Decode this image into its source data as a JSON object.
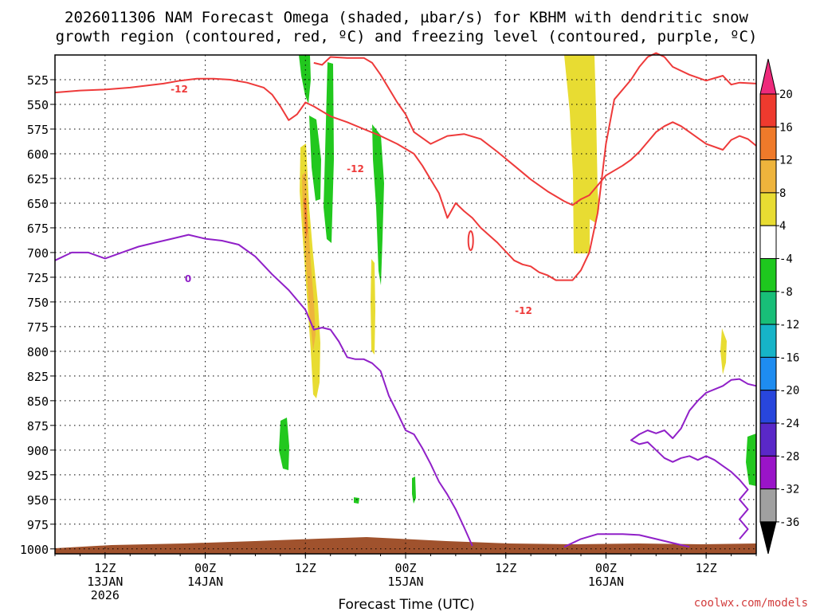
{
  "chart_data": {
    "type": "heatmap",
    "title_line1": "2026011306 NAM Forecast Omega (shaded, µbar/s) for KBHM with dendritic snow",
    "title_line2": "growth region (contoured, red, ºC) and freezing level (contoured, purple, ºC)",
    "xlabel": "Forecast Time (UTC)",
    "credit": "coolwx.com/models",
    "x_range_hours": [
      0,
      84
    ],
    "y_range_hPa": [
      1005,
      500
    ],
    "y_ticks": [
      525,
      550,
      575,
      600,
      625,
      650,
      675,
      700,
      725,
      750,
      775,
      800,
      825,
      850,
      875,
      900,
      925,
      950,
      975,
      1000
    ],
    "x_ticks": [
      {
        "hour": 6,
        "lines": [
          "12Z",
          "13JAN",
          "2026"
        ]
      },
      {
        "hour": 18,
        "lines": [
          "00Z",
          "14JAN"
        ]
      },
      {
        "hour": 30,
        "lines": [
          "12Z"
        ]
      },
      {
        "hour": 42,
        "lines": [
          "00Z",
          "15JAN"
        ]
      },
      {
        "hour": 54,
        "lines": [
          "12Z"
        ]
      },
      {
        "hour": 66,
        "lines": [
          "00Z",
          "16JAN"
        ]
      },
      {
        "hour": 78,
        "lines": [
          "12Z"
        ]
      }
    ],
    "colorbar": {
      "labels": [
        "20",
        "16",
        "12",
        "8",
        "4",
        "-4",
        "-8",
        "-12",
        "-16",
        "-20",
        "-24",
        "-28",
        "-32",
        "-36"
      ],
      "colors": [
        "#ee2a7b",
        "#ee3a2e",
        "#ef7a2a",
        "#eeb43c",
        "#e8dc32",
        "#ffffff",
        "#1ec81e",
        "#18be78",
        "#16b4c8",
        "#1e8cf0",
        "#2846dc",
        "#5a28c8",
        "#9a14c8",
        "#a0a0a0",
        "#000000"
      ]
    },
    "contour_labels": {
      "dgz": "-12",
      "freezing": "0"
    },
    "series": [
      {
        "name": "dgz_upper_-12C",
        "color": "#ee3a3a",
        "points": [
          [
            0,
            538
          ],
          [
            3,
            536
          ],
          [
            6,
            535
          ],
          [
            9,
            533
          ],
          [
            11,
            531
          ],
          [
            13,
            529
          ],
          [
            15,
            526
          ],
          [
            17,
            524
          ],
          [
            19,
            524
          ],
          [
            21,
            525
          ],
          [
            23,
            528
          ],
          [
            25,
            533
          ],
          [
            26,
            540
          ],
          [
            27,
            552
          ],
          [
            28,
            566
          ],
          [
            29,
            560
          ],
          [
            30,
            548
          ],
          [
            31,
            552
          ],
          [
            33,
            562
          ],
          [
            35,
            568
          ],
          [
            37,
            575
          ],
          [
            39,
            582
          ],
          [
            41,
            590
          ],
          [
            43,
            600
          ],
          [
            44,
            612
          ],
          [
            45,
            626
          ],
          [
            46,
            640
          ],
          [
            47,
            665
          ],
          [
            48,
            650
          ],
          [
            49,
            658
          ],
          [
            50,
            665
          ],
          [
            51,
            675
          ],
          [
            53,
            690
          ],
          [
            55,
            708
          ],
          [
            56,
            712
          ],
          [
            57,
            714
          ],
          [
            58,
            720
          ],
          [
            59,
            723
          ],
          [
            60,
            728
          ],
          [
            62,
            728
          ],
          [
            63,
            718
          ],
          [
            64,
            700
          ],
          [
            65,
            660
          ],
          [
            66,
            590
          ],
          [
            67,
            545
          ],
          [
            69,
            525
          ],
          [
            70,
            512
          ],
          [
            71,
            502
          ],
          [
            72,
            498
          ],
          [
            73,
            502
          ],
          [
            74,
            512
          ],
          [
            76,
            520
          ],
          [
            78,
            526
          ],
          [
            80,
            521
          ],
          [
            81,
            530
          ],
          [
            82,
            528
          ],
          [
            84,
            529
          ]
        ]
      },
      {
        "name": "dgz_lower_-12C",
        "color": "#ee3a3a",
        "points": [
          [
            31,
            508
          ],
          [
            32,
            510
          ],
          [
            33,
            502
          ],
          [
            35,
            503
          ],
          [
            37,
            503
          ],
          [
            38,
            508
          ],
          [
            39,
            520
          ],
          [
            41,
            548
          ],
          [
            42,
            560
          ],
          [
            43,
            578
          ],
          [
            45,
            590
          ],
          [
            47,
            582
          ],
          [
            49,
            580
          ],
          [
            51,
            585
          ],
          [
            53,
            598
          ],
          [
            55,
            612
          ],
          [
            57,
            626
          ],
          [
            59,
            638
          ],
          [
            61,
            648
          ],
          [
            62,
            652
          ],
          [
            63,
            646
          ],
          [
            64,
            642
          ],
          [
            65,
            632
          ],
          [
            66,
            622
          ],
          [
            68,
            612
          ],
          [
            69,
            606
          ],
          [
            70,
            598
          ],
          [
            71,
            588
          ],
          [
            72,
            578
          ],
          [
            73,
            572
          ],
          [
            74,
            568
          ],
          [
            75,
            572
          ],
          [
            76,
            578
          ],
          [
            78,
            590
          ],
          [
            80,
            596
          ],
          [
            81,
            586
          ],
          [
            82,
            582
          ],
          [
            83,
            585
          ],
          [
            84,
            592
          ]
        ]
      },
      {
        "name": "freezing_0C",
        "color": "#9020c8",
        "points": [
          [
            0,
            708
          ],
          [
            2,
            700
          ],
          [
            4,
            700
          ],
          [
            6,
            706
          ],
          [
            8,
            700
          ],
          [
            10,
            694
          ],
          [
            12,
            690
          ],
          [
            14,
            686
          ],
          [
            16,
            682
          ],
          [
            18,
            686
          ],
          [
            20,
            688
          ],
          [
            22,
            692
          ],
          [
            24,
            704
          ],
          [
            26,
            722
          ],
          [
            28,
            738
          ],
          [
            30,
            758
          ],
          [
            31,
            778
          ],
          [
            32,
            776
          ],
          [
            33,
            778
          ],
          [
            34,
            790
          ],
          [
            35,
            806
          ],
          [
            36,
            808
          ],
          [
            37,
            808
          ],
          [
            38,
            812
          ],
          [
            39,
            820
          ],
          [
            40,
            845
          ],
          [
            41,
            862
          ],
          [
            42,
            880
          ],
          [
            43,
            884
          ],
          [
            44,
            898
          ],
          [
            45,
            914
          ],
          [
            46,
            932
          ],
          [
            47,
            945
          ],
          [
            48,
            960
          ],
          [
            49,
            978
          ],
          [
            50,
            997
          ]
        ]
      },
      {
        "name": "freezing_0C_right",
        "color": "#9020c8",
        "points": [
          [
            84,
            835
          ],
          [
            83,
            833
          ],
          [
            82,
            828
          ],
          [
            81,
            829
          ],
          [
            80,
            835
          ],
          [
            78,
            842
          ],
          [
            77,
            850
          ],
          [
            76,
            860
          ],
          [
            75,
            878
          ],
          [
            74,
            888
          ],
          [
            73,
            880
          ],
          [
            72,
            883
          ],
          [
            71,
            880
          ],
          [
            70,
            884
          ],
          [
            69,
            890
          ],
          [
            70,
            894
          ],
          [
            71,
            892
          ],
          [
            72,
            900
          ],
          [
            73,
            908
          ],
          [
            74,
            912
          ],
          [
            75,
            908
          ],
          [
            76,
            906
          ],
          [
            77,
            910
          ],
          [
            78,
            906
          ],
          [
            79,
            910
          ],
          [
            80,
            916
          ],
          [
            81,
            922
          ],
          [
            82,
            930
          ],
          [
            83,
            940
          ],
          [
            82,
            950
          ],
          [
            83,
            960
          ],
          [
            82,
            970
          ],
          [
            83,
            980
          ],
          [
            82,
            990
          ]
        ]
      },
      {
        "name": "freezing_0C_low",
        "color": "#9020c8",
        "points": [
          [
            61,
            998
          ],
          [
            63,
            990
          ],
          [
            65,
            985
          ],
          [
            68,
            985
          ],
          [
            70,
            986
          ],
          [
            72,
            990
          ],
          [
            74,
            994
          ],
          [
            76,
            998
          ]
        ]
      }
    ]
  }
}
